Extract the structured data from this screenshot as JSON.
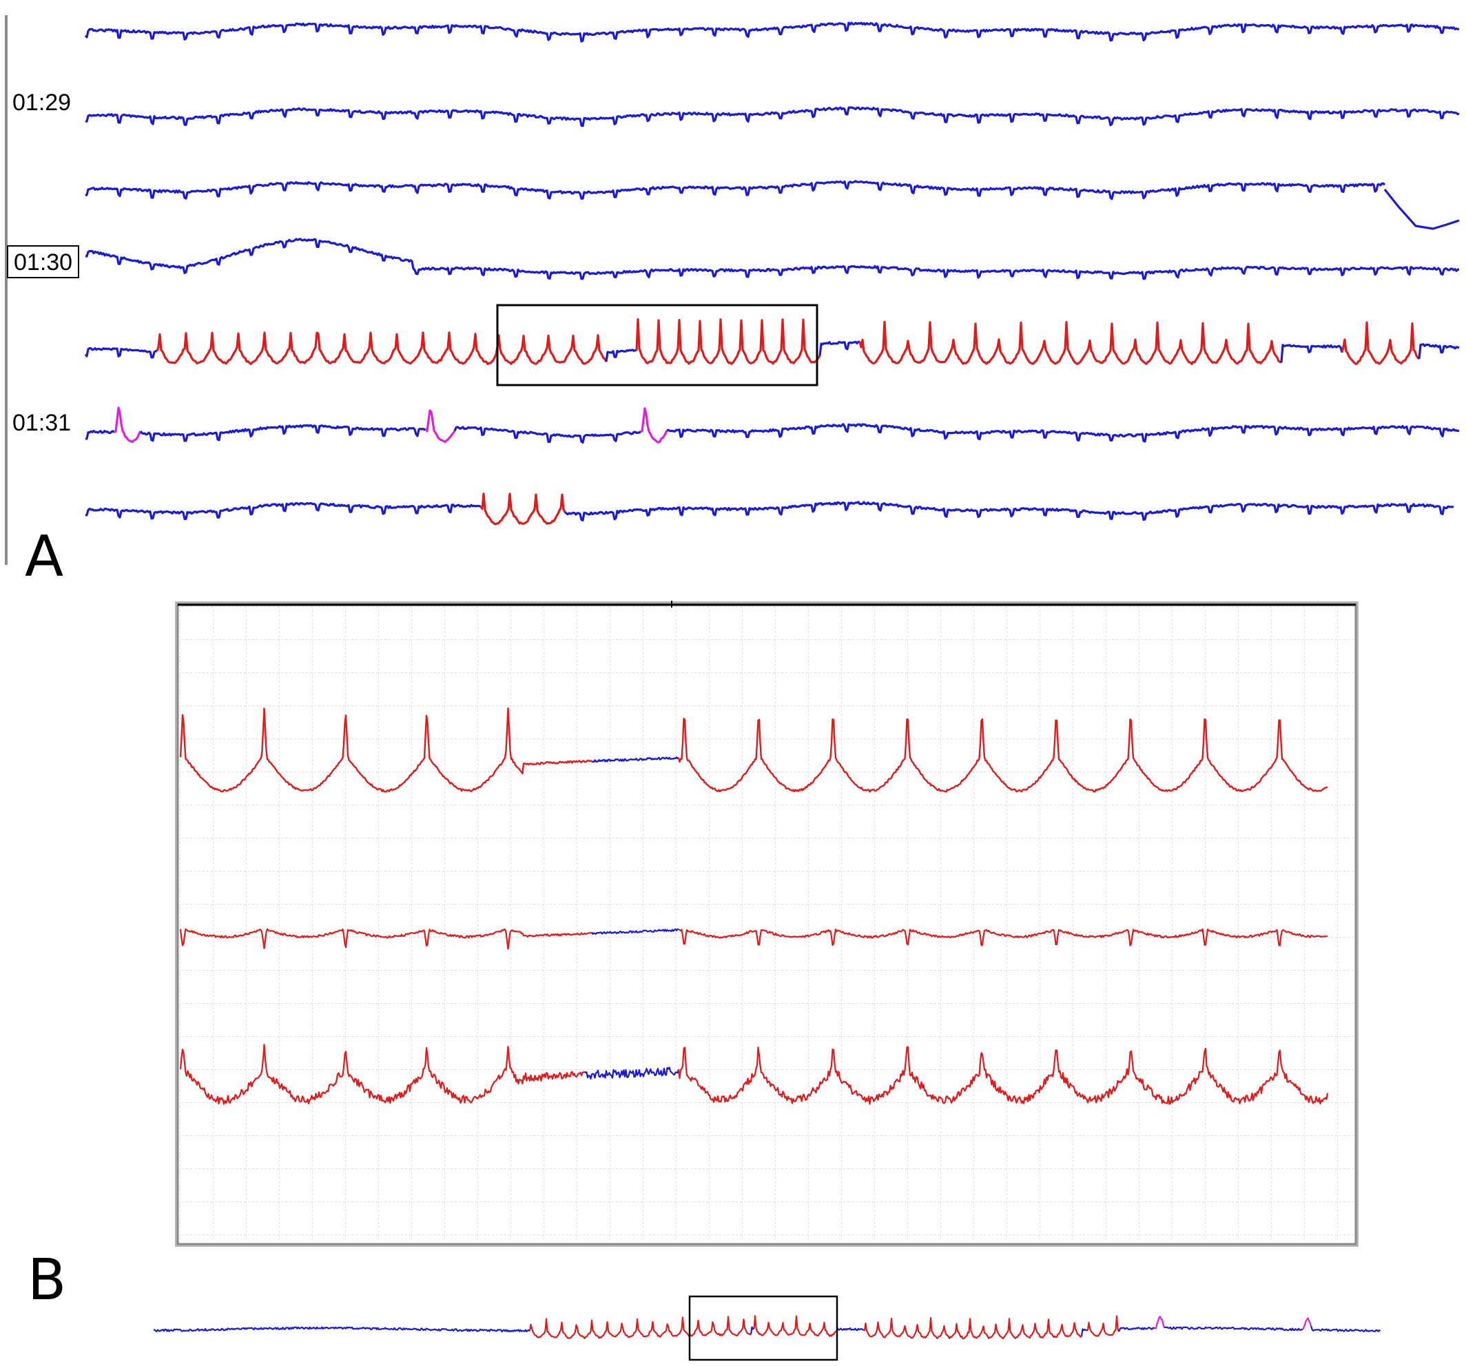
{
  "panel_a": {
    "label": "A",
    "time_labels": [
      "01:29",
      "01:30",
      "01:31"
    ]
  },
  "panel_b": {
    "label": "B"
  },
  "colors": {
    "normal_trace": "#1a1adb",
    "event_trace": "#e01b1b",
    "marked_beat": "#e01ee0",
    "grid": "#d4d4d4",
    "frame": "#8a8a8a"
  }
}
